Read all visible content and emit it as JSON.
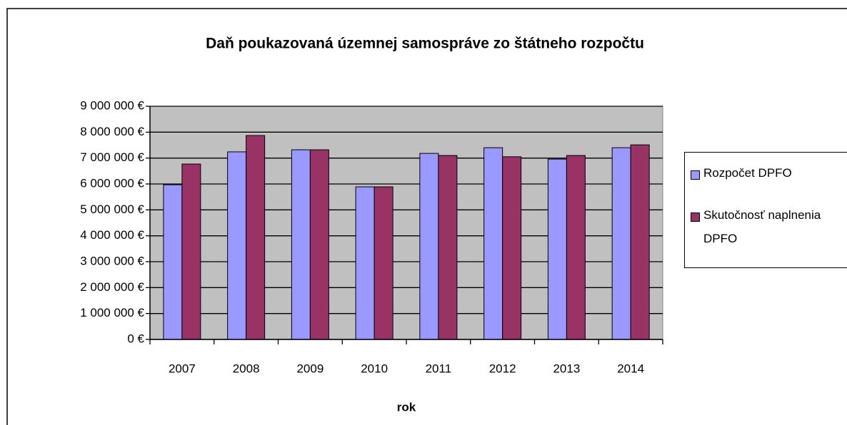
{
  "chart_data": {
    "type": "bar",
    "title": "Daň poukazovaná územnej samospráve zo štátneho rozpočtu",
    "x_label": "rok",
    "categories": [
      "2007",
      "2008",
      "2009",
      "2010",
      "2011",
      "2012",
      "2013",
      "2014"
    ],
    "series": [
      {
        "name": "Rozpočet DPFO",
        "color": "#9999ff",
        "values": [
          5970000,
          7240000,
          7320000,
          5890000,
          7180000,
          7400000,
          6960000,
          7400000
        ]
      },
      {
        "name": "Skutočnosť naplnenia DPFO",
        "color": "#993366",
        "values": [
          6770000,
          7870000,
          7320000,
          5890000,
          7100000,
          7050000,
          7100000,
          7510000
        ]
      }
    ],
    "ylim": [
      0,
      9000000
    ],
    "yticks": [
      {
        "value": 0,
        "label": "0 €"
      },
      {
        "value": 1000000,
        "label": "1 000 000 €"
      },
      {
        "value": 2000000,
        "label": "2 000 000 €"
      },
      {
        "value": 3000000,
        "label": "3 000 000 €"
      },
      {
        "value": 4000000,
        "label": "4 000 000 €"
      },
      {
        "value": 5000000,
        "label": "5 000 000 €"
      },
      {
        "value": 6000000,
        "label": "6 000 000 €"
      },
      {
        "value": 7000000,
        "label": "7 000 000 €"
      },
      {
        "value": 8000000,
        "label": "8 000 000 €"
      },
      {
        "value": 9000000,
        "label": "9 000 000 €"
      }
    ],
    "grid": true,
    "plot_background": "#c0c0c0",
    "legend": "right"
  }
}
